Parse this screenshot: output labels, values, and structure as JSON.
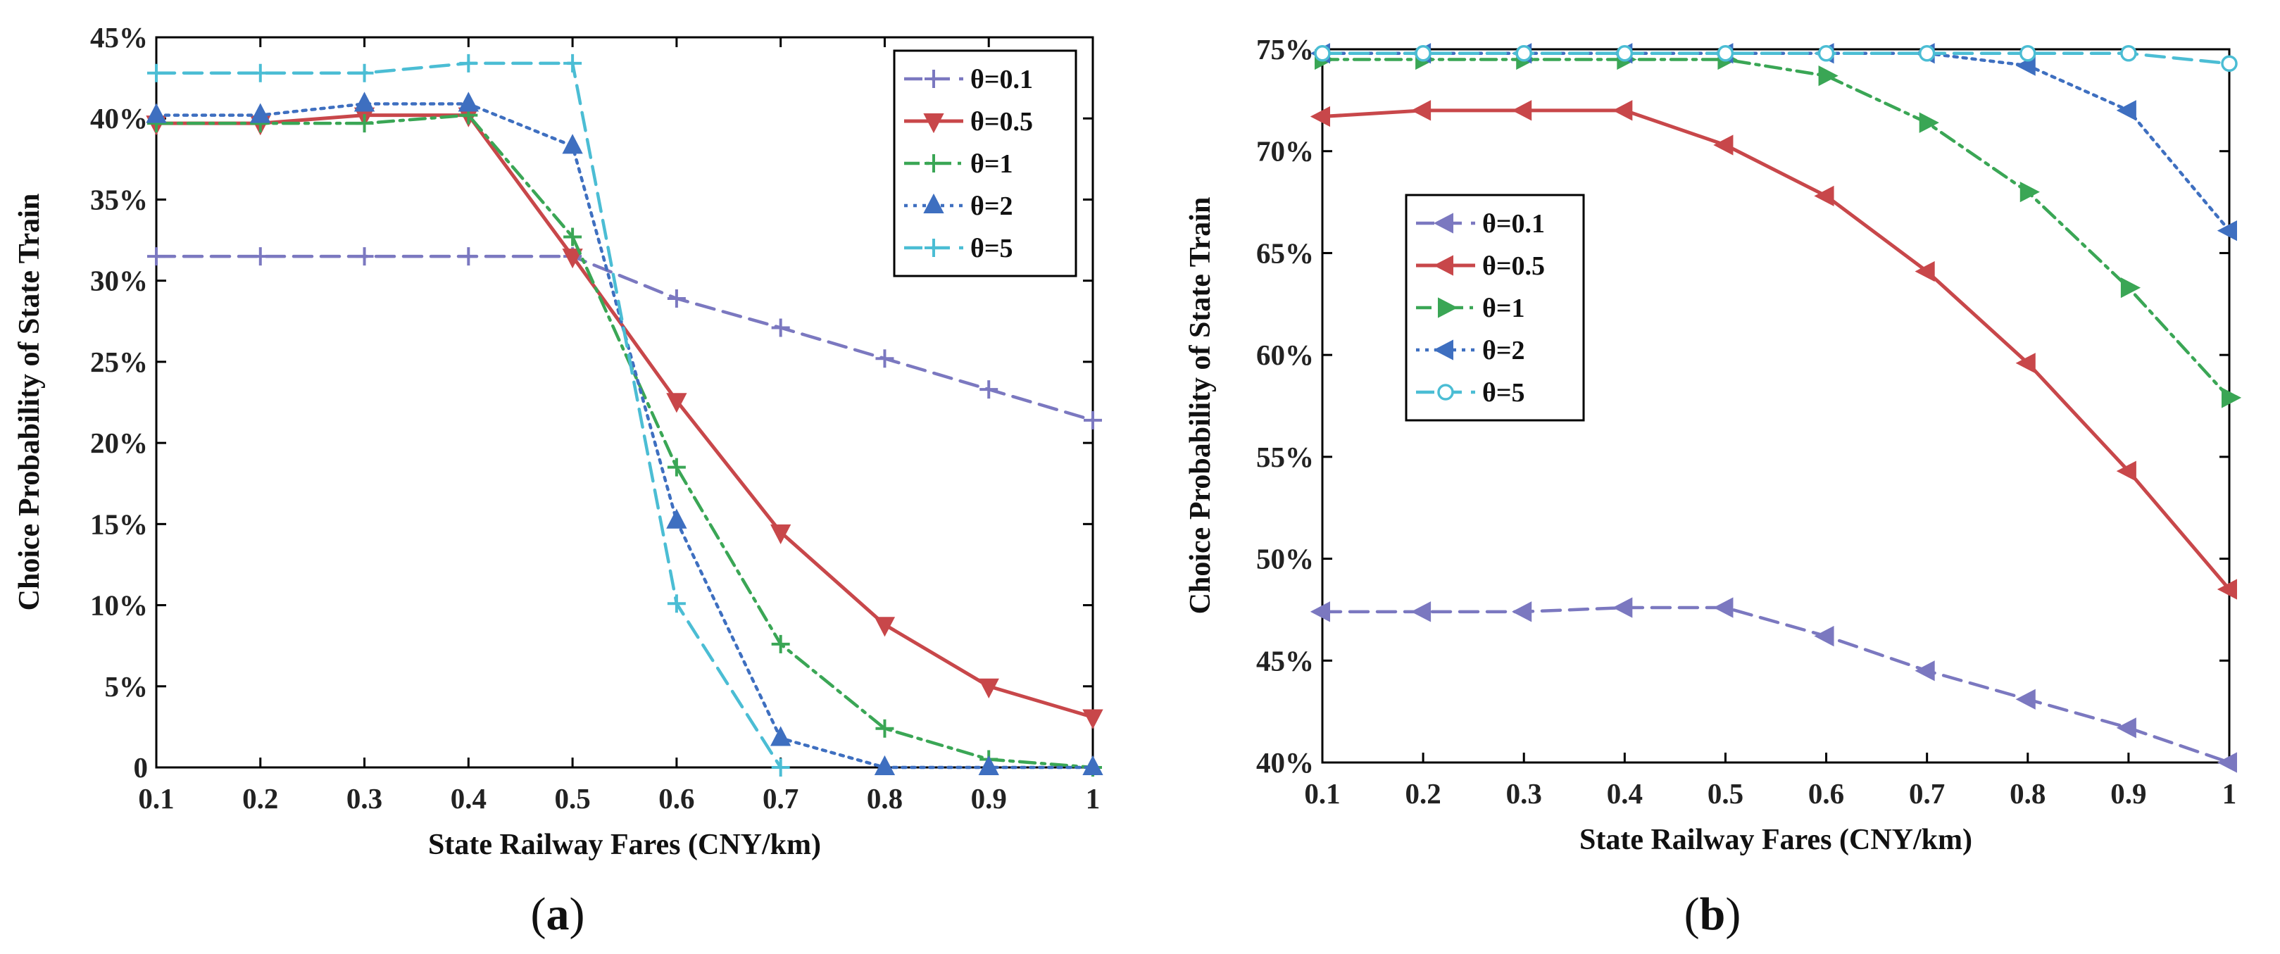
{
  "chart_data": [
    {
      "type": "line",
      "panel_label": "a",
      "title": "",
      "xlabel": "State Railway Fares (CNY/km)",
      "ylabel": "Choice Probability of State Train",
      "x": [
        0.1,
        0.2,
        0.3,
        0.4,
        0.5,
        0.6,
        0.7,
        0.8,
        0.9,
        1
      ],
      "x_tick_labels": [
        "0.1",
        "0.2",
        "0.3",
        "0.4",
        "0.5",
        "0.6",
        "0.7",
        "0.8",
        "0.9",
        "1"
      ],
      "xlim": [
        0.1,
        1
      ],
      "ylim": [
        0,
        45
      ],
      "y_ticks": [
        0,
        5,
        10,
        15,
        20,
        25,
        30,
        35,
        40,
        45
      ],
      "y_tick_labels": [
        "0",
        "5%",
        "10%",
        "15%",
        "20%",
        "25%",
        "30%",
        "35%",
        "40%",
        "45%"
      ],
      "legend_position": "top-right",
      "series": [
        {
          "name": "θ=0.1",
          "color": "#7b78c0",
          "dash": "dashed",
          "marker": "plus",
          "values": [
            31.5,
            31.5,
            31.5,
            31.5,
            31.5,
            28.9,
            27.1,
            25.2,
            23.3,
            21.4
          ]
        },
        {
          "name": "θ=0.5",
          "color": "#c8474a",
          "dash": "solid",
          "marker": "triangle-down",
          "values": [
            39.7,
            39.7,
            40.2,
            40.2,
            31.5,
            22.6,
            14.5,
            8.8,
            5.0,
            3.1
          ]
        },
        {
          "name": "θ=1",
          "color": "#3aa655",
          "dash": "dashdot",
          "marker": "plus",
          "values": [
            39.7,
            39.7,
            39.7,
            40.2,
            32.7,
            18.5,
            7.6,
            2.4,
            0.5,
            0.0
          ]
        },
        {
          "name": "θ=2",
          "color": "#3e6fc0",
          "dash": "dotted",
          "marker": "triangle-up",
          "values": [
            40.2,
            40.2,
            40.9,
            40.9,
            38.3,
            15.2,
            1.8,
            0.0,
            0.0,
            0.0
          ]
        },
        {
          "name": "θ=5",
          "color": "#4bbdd4",
          "dash": "dashed",
          "marker": "plus",
          "x": [
            0.1,
            0.2,
            0.3,
            0.4,
            0.5,
            0.6,
            0.7
          ],
          "values": [
            42.8,
            42.8,
            42.8,
            43.4,
            43.4,
            10.1,
            0.0
          ]
        }
      ]
    },
    {
      "type": "line",
      "panel_label": "b",
      "title": "",
      "xlabel": "State Railway Fares (CNY/km)",
      "ylabel": "Choice Probability of State Train",
      "x": [
        0.1,
        0.2,
        0.3,
        0.4,
        0.5,
        0.6,
        0.7,
        0.8,
        0.9,
        1
      ],
      "x_tick_labels": [
        "0.1",
        "0.2",
        "0.3",
        "0.4",
        "0.5",
        "0.6",
        "0.7",
        "0.8",
        "0.9",
        "1"
      ],
      "xlim": [
        0.1,
        1
      ],
      "ylim": [
        40,
        75
      ],
      "y_ticks": [
        40,
        45,
        50,
        55,
        60,
        65,
        70,
        75
      ],
      "y_tick_labels": [
        "40%",
        "45%",
        "50%",
        "55%",
        "60%",
        "65%",
        "70%",
        "75%"
      ],
      "legend_position": "center-left",
      "series": [
        {
          "name": "θ=0.1",
          "color": "#7b78c0",
          "dash": "dashed",
          "marker": "triangle-left",
          "values": [
            47.4,
            47.4,
            47.4,
            47.6,
            47.6,
            46.2,
            44.5,
            43.1,
            41.7,
            40.0
          ]
        },
        {
          "name": "θ=0.5",
          "color": "#c8474a",
          "dash": "solid",
          "marker": "triangle-left",
          "values": [
            71.7,
            72.0,
            72.0,
            72.0,
            70.3,
            67.8,
            64.1,
            59.6,
            54.3,
            48.5
          ]
        },
        {
          "name": "θ=1",
          "color": "#3aa655",
          "dash": "dashdot",
          "marker": "triangle-right",
          "values": [
            74.5,
            74.5,
            74.5,
            74.5,
            74.5,
            73.7,
            71.4,
            68.0,
            63.3,
            57.9
          ]
        },
        {
          "name": "θ=2",
          "color": "#3e6fc0",
          "dash": "dotted",
          "marker": "triangle-left",
          "values": [
            74.8,
            74.8,
            74.8,
            74.8,
            74.8,
            74.8,
            74.8,
            74.2,
            72.0,
            66.1
          ]
        },
        {
          "name": "θ=5",
          "color": "#4bbdd4",
          "dash": "dashed",
          "marker": "circle",
          "values": [
            74.8,
            74.8,
            74.8,
            74.8,
            74.8,
            74.8,
            74.8,
            74.8,
            74.8,
            74.3
          ]
        }
      ]
    }
  ]
}
